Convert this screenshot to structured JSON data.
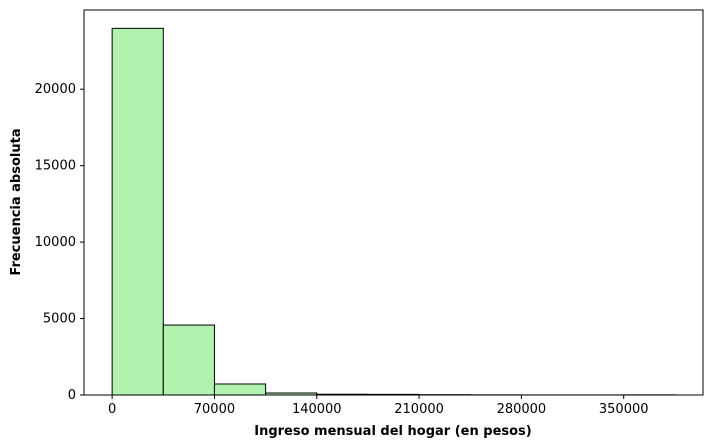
{
  "chart_data": {
    "type": "histogram",
    "x_label": "Ingreso mensual del hogar (en pesos)",
    "y_label": "Frecuencia absoluta",
    "bins": [
      0,
      35000,
      70000,
      105000,
      140000,
      175000,
      210000,
      245000,
      280000,
      315000,
      350000,
      385000
    ],
    "values": [
      23980,
      4575,
      720,
      130,
      50,
      40,
      20,
      10,
      5,
      5,
      10
    ],
    "color": "#b0f2ae",
    "edgecolor": "#000000",
    "xlim": [
      -19250,
      404250
    ],
    "xticks": [
      0,
      70000,
      140000,
      210000,
      280000,
      350000
    ],
    "ylim": [
      0,
      25180
    ],
    "yticks": [
      0,
      5000,
      10000,
      15000,
      20000
    ]
  }
}
